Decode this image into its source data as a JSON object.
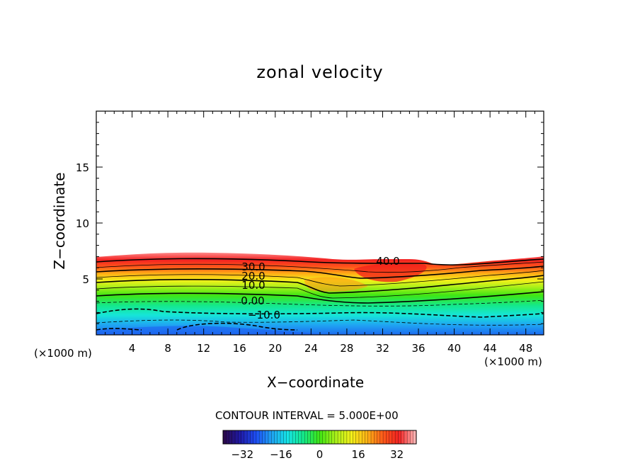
{
  "chart_data": {
    "type": "contour",
    "title": "zonal velocity",
    "xlabel": "X−coordinate",
    "ylabel": "Z−coordinate",
    "x_unit_left": "(×1000 m)",
    "x_unit_right": "(×1000 m)",
    "xlim": [
      0,
      50
    ],
    "ylim": [
      0,
      20
    ],
    "x_ticks": [
      4,
      8,
      12,
      16,
      20,
      24,
      28,
      32,
      36,
      40,
      44,
      48
    ],
    "y_ticks": [
      5,
      10,
      15
    ],
    "contour_interval_text": "CONTOUR INTERVAL = 5.000E+00",
    "contour_labels": [
      "40.0",
      "30.0",
      "20.0",
      "10.0",
      "0.00",
      "−10.0"
    ],
    "colorbar": {
      "range": [
        -40,
        40
      ],
      "ticks": [
        "−32",
        "−16",
        "0",
        "16",
        "32"
      ]
    },
    "colormap": [
      "#2a0a4e",
      "#1f1aa8",
      "#1e4ff5",
      "#1fa5f2",
      "#16e6e6",
      "#15e888",
      "#3fe614",
      "#a9f01a",
      "#f2f01a",
      "#ffb216",
      "#ff5a1a",
      "#f22222",
      "#ffb2b2"
    ]
  }
}
